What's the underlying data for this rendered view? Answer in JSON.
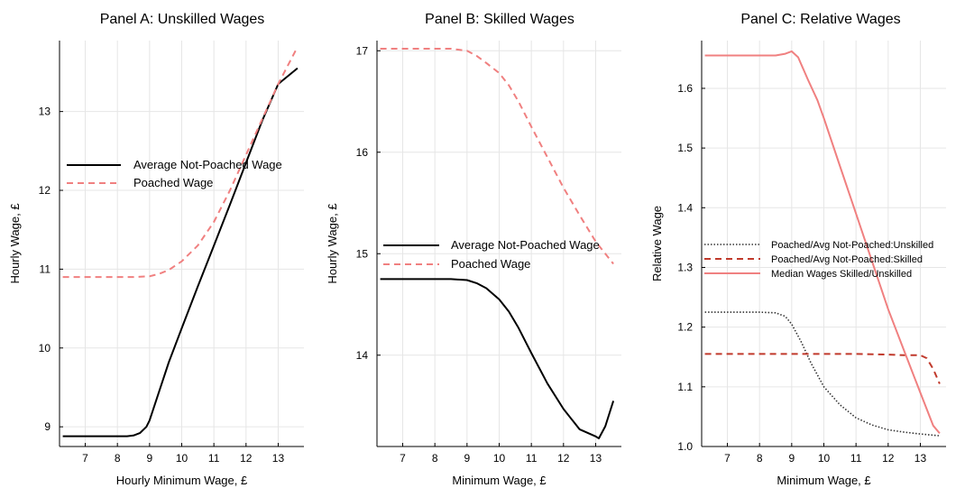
{
  "chart_data": [
    {
      "type": "line",
      "title": "Panel A: Unskilled Wages",
      "xlabel": "Hourly Minimum Wage, £",
      "ylabel": "Hourly Wage, £",
      "xlim": [
        6.2,
        13.8
      ],
      "ylim": [
        8.75,
        13.9
      ],
      "xticks": [
        7,
        8,
        9,
        10,
        11,
        12,
        13
      ],
      "yticks": [
        9,
        10,
        11,
        12,
        13
      ],
      "grid": true,
      "legend": "center-left",
      "series": [
        {
          "name": "Average Not-Poached Wage",
          "color": "#000000",
          "dash": "solid",
          "x": [
            6.3,
            7.0,
            8.0,
            8.3,
            8.5,
            8.7,
            8.9,
            9.0,
            9.3,
            9.6,
            10.0,
            10.5,
            11.0,
            11.5,
            12.0,
            12.5,
            13.0,
            13.6
          ],
          "y": [
            8.88,
            8.88,
            8.88,
            8.88,
            8.89,
            8.92,
            9.0,
            9.08,
            9.45,
            9.82,
            10.25,
            10.78,
            11.3,
            11.82,
            12.35,
            12.88,
            13.35,
            13.55
          ]
        },
        {
          "name": "Poached Wage",
          "color": "#f08080",
          "dash": "dashed",
          "x": [
            6.3,
            7.0,
            8.0,
            8.5,
            9.0,
            9.3,
            9.6,
            10.0,
            10.5,
            11.0,
            11.5,
            12.0,
            12.5,
            13.0,
            13.6
          ],
          "y": [
            10.9,
            10.9,
            10.9,
            10.9,
            10.91,
            10.94,
            10.99,
            11.1,
            11.3,
            11.6,
            12.0,
            12.45,
            12.9,
            13.35,
            13.82
          ]
        }
      ]
    },
    {
      "type": "line",
      "title": "Panel B:  Skilled Wages",
      "xlabel": "Minimum Wage, £",
      "ylabel": "Hourly Wage, £",
      "xlim": [
        6.2,
        13.8
      ],
      "ylim": [
        13.1,
        17.1
      ],
      "xticks": [
        7,
        8,
        9,
        10,
        11,
        12,
        13
      ],
      "yticks": [
        14,
        15,
        16,
        17
      ],
      "grid": true,
      "legend": "center-left",
      "series": [
        {
          "name": "Average Not-Poached Wage",
          "color": "#000000",
          "dash": "solid",
          "x": [
            6.3,
            7.0,
            8.0,
            8.5,
            9.0,
            9.3,
            9.6,
            10.0,
            10.3,
            10.6,
            11.0,
            11.5,
            12.0,
            12.5,
            13.0,
            13.1,
            13.3,
            13.55
          ],
          "y": [
            14.75,
            14.75,
            14.75,
            14.75,
            14.74,
            14.71,
            14.66,
            14.55,
            14.43,
            14.27,
            14.02,
            13.72,
            13.47,
            13.27,
            13.2,
            13.18,
            13.3,
            13.55
          ]
        },
        {
          "name": "Poached Wage",
          "color": "#f08080",
          "dash": "dashed",
          "x": [
            6.3,
            7.0,
            8.0,
            8.5,
            9.0,
            9.3,
            9.6,
            10.0,
            10.3,
            10.6,
            11.0,
            11.5,
            12.0,
            12.5,
            13.0,
            13.55
          ],
          "y": [
            17.02,
            17.02,
            17.02,
            17.02,
            17.0,
            16.95,
            16.88,
            16.78,
            16.66,
            16.5,
            16.25,
            15.95,
            15.65,
            15.38,
            15.12,
            14.9
          ]
        }
      ]
    },
    {
      "type": "line",
      "title": "Panel C: Relative Wages",
      "xlabel": "Minimum Wage, £",
      "ylabel": "Relative Wage",
      "xlim": [
        6.2,
        13.8
      ],
      "ylim": [
        1.0,
        1.68
      ],
      "xticks": [
        7,
        8,
        9,
        10,
        11,
        12,
        13
      ],
      "yticks": [
        1.0,
        1.1,
        1.2,
        1.3,
        1.4,
        1.5,
        1.6
      ],
      "grid": true,
      "legend": "center-left",
      "series": [
        {
          "name": "Poached/Avg Not-Poached:Unskilled",
          "color": "#333333",
          "dash": "dotted",
          "x": [
            6.3,
            7.0,
            8.0,
            8.5,
            8.8,
            9.0,
            9.3,
            9.6,
            10.0,
            10.5,
            11.0,
            11.5,
            12.0,
            12.5,
            13.0,
            13.6
          ],
          "y": [
            1.225,
            1.225,
            1.225,
            1.224,
            1.218,
            1.205,
            1.175,
            1.14,
            1.1,
            1.07,
            1.048,
            1.036,
            1.028,
            1.024,
            1.021,
            1.018
          ]
        },
        {
          "name": "Poached/Avg Not-Poached:Skilled",
          "color": "#c0392b",
          "dash": "dashed",
          "x": [
            6.3,
            7.0,
            8.0,
            9.0,
            10.0,
            11.0,
            12.0,
            12.5,
            13.0,
            13.2,
            13.4,
            13.6
          ],
          "y": [
            1.155,
            1.155,
            1.155,
            1.155,
            1.155,
            1.155,
            1.154,
            1.153,
            1.153,
            1.148,
            1.13,
            1.105
          ]
        },
        {
          "name": "Median Wages Skilled/Unskilled",
          "color": "#f08080",
          "dash": "solid",
          "x": [
            6.3,
            7.0,
            8.0,
            8.5,
            8.8,
            9.0,
            9.2,
            9.5,
            9.8,
            10.0,
            10.5,
            11.0,
            11.5,
            12.0,
            12.5,
            13.0,
            13.4,
            13.6
          ],
          "y": [
            1.655,
            1.655,
            1.655,
            1.655,
            1.658,
            1.662,
            1.652,
            1.615,
            1.58,
            1.55,
            1.47,
            1.39,
            1.31,
            1.23,
            1.16,
            1.09,
            1.035,
            1.022
          ]
        }
      ]
    }
  ]
}
